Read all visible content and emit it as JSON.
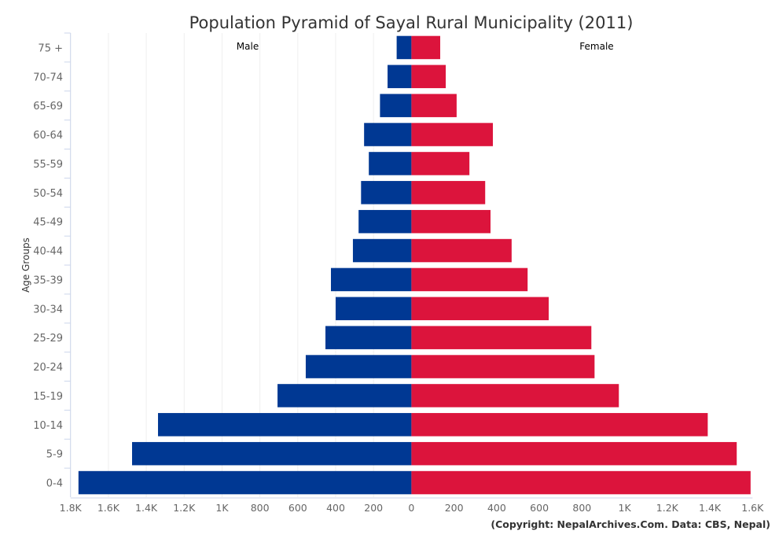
{
  "chart_data": {
    "type": "bar",
    "orientation": "horizontal-pyramid",
    "title": "Population Pyramid of Sayal Rural Municipality (2011)",
    "ylabel": "Age Groups",
    "credit": "(Copyright: NepalArchives.Com. Data: CBS, Nepal)",
    "categories": [
      "75 +",
      "70-74",
      "65-69",
      "60-64",
      "55-59",
      "50-54",
      "45-49",
      "40-44",
      "35-39",
      "30-34",
      "25-29",
      "20-24",
      "15-19",
      "10-14",
      "5-9",
      "0-4"
    ],
    "series": [
      {
        "name": "Male",
        "color": "#003893",
        "values": [
          78,
          126,
          166,
          250,
          225,
          266,
          279,
          309,
          425,
          400,
          454,
          558,
          707,
          1338,
          1475,
          1758
        ]
      },
      {
        "name": "Female",
        "color": "#DC143C",
        "values": [
          135,
          161,
          212,
          382,
          272,
          346,
          371,
          470,
          545,
          644,
          844,
          859,
          973,
          1390,
          1526,
          1591
        ]
      }
    ],
    "male_axis": {
      "range": [
        0,
        1800
      ],
      "ticks": [
        "0",
        "200",
        "400",
        "600",
        "800",
        "1K",
        "1.2K",
        "1.4K",
        "1.6K",
        "1.8K"
      ],
      "reversed": true
    },
    "female_axis": {
      "range": [
        0,
        1600
      ],
      "ticks": [
        "0",
        "200",
        "400",
        "600",
        "800",
        "1K",
        "1.2K",
        "1.4K",
        "1.6K"
      ]
    },
    "grid": true
  }
}
